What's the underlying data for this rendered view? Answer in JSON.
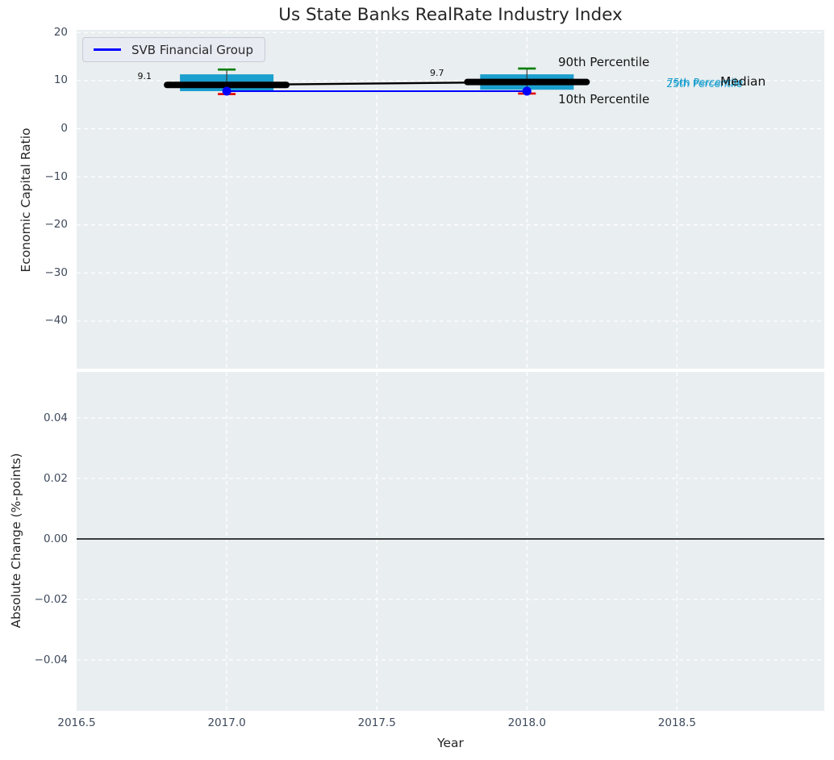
{
  "title": "Us State Banks RealRate Industry Index",
  "figure": {
    "background": "#ffffff",
    "axes_background": "#e9eef0",
    "grid_color": "#ffffff",
    "tick_label_color": "#3e4a5c"
  },
  "chart_data": [
    {
      "type": "box",
      "title": "",
      "xlabel": "",
      "ylabel": "Economic Capital Ratio",
      "xlim": [
        2016.5,
        2019.0
      ],
      "ylim": [
        -50,
        20.5
      ],
      "grid": "white dashed",
      "legend_position": "upper left",
      "xtick_values": [
        2016.5,
        2017.0,
        2017.5,
        2018.0,
        2018.5
      ],
      "xtick_labels": [
        "2016.5",
        "2017.0",
        "2017.5",
        "2018.0",
        "2018.5"
      ],
      "ytick_values": [
        20,
        10,
        0,
        -10,
        -20,
        -30,
        -40
      ],
      "ytick_labels": [
        "20",
        "10",
        "0",
        "−10",
        "−20",
        "−30",
        "−40"
      ],
      "box_color": "#1b9fce",
      "median_color": "#000000",
      "p90_cap_color": "#007d00",
      "p10_cap_color": "#e00000",
      "whisker_color": "#3a3a3a",
      "boxes": [
        {
          "x": 2017,
          "p10": 7.2,
          "q1": 7.8,
          "median": 9.1,
          "q3": 11.3,
          "p90": 12.3,
          "label": "9.1"
        },
        {
          "x": 2018,
          "p10": 7.3,
          "q1": 8.1,
          "median": 9.7,
          "q3": 11.3,
          "p90": 12.5,
          "label": "9.7"
        }
      ],
      "median_line": {
        "x": [
          2017,
          2018
        ],
        "y": [
          9.1,
          9.7
        ],
        "color": "#000000"
      },
      "series": [
        {
          "name": "SVB Financial Group",
          "color": "#0000ff",
          "marker": "circle",
          "x": [
            2017,
            2018
          ],
          "y": [
            7.8,
            7.8
          ]
        }
      ],
      "annotation_labels": {
        "p90": "90th Percentile",
        "p10": "10th Percentile",
        "p75": "75th Percentile",
        "p25": "25th Percentile",
        "median": "Median"
      }
    },
    {
      "type": "line",
      "title": "",
      "xlabel": "Year",
      "ylabel": "Absolute Change (%-points)",
      "xlim": [
        2016.5,
        2019.0
      ],
      "ylim": [
        -0.056,
        0.056
      ],
      "grid": "white dashed",
      "xtick_values": [
        2016.5,
        2017.0,
        2017.5,
        2018.0,
        2018.5
      ],
      "xtick_labels": [
        "2016.5",
        "2017.0",
        "2017.5",
        "2018.0",
        "2018.5"
      ],
      "ytick_values": [
        0.04,
        0.02,
        0.0,
        -0.02,
        -0.04
      ],
      "ytick_labels": [
        "0.04",
        "0.02",
        "0.00",
        "−0.02",
        "−0.04"
      ],
      "zero_line": {
        "y": 0.0,
        "color": "#000000"
      },
      "series": []
    }
  ]
}
